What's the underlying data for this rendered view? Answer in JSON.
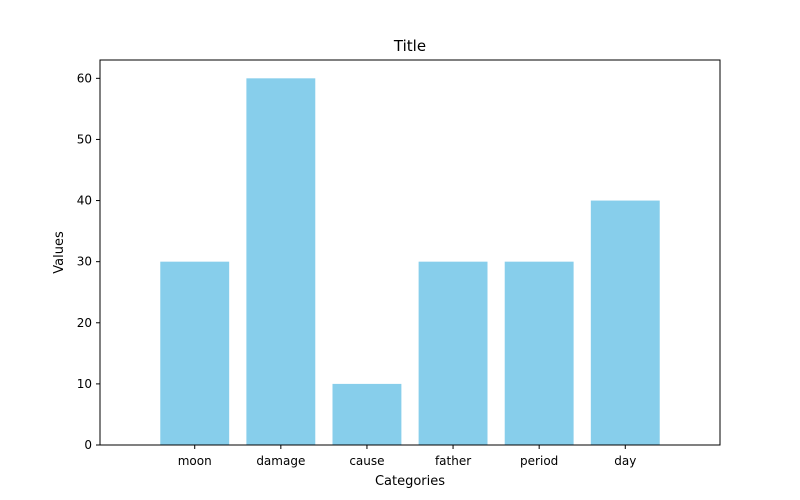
{
  "chart_data": {
    "type": "bar",
    "title": "Title",
    "xlabel": "Categories",
    "ylabel": "Values",
    "categories": [
      "moon",
      "damage",
      "cause",
      "father",
      "period",
      "day"
    ],
    "values": [
      30,
      60,
      10,
      30,
      30,
      40
    ],
    "ylim": [
      0,
      63
    ],
    "yticks": [
      0,
      10,
      20,
      30,
      40,
      50,
      60
    ],
    "grid": false,
    "bar_color": "#87ceeb"
  }
}
